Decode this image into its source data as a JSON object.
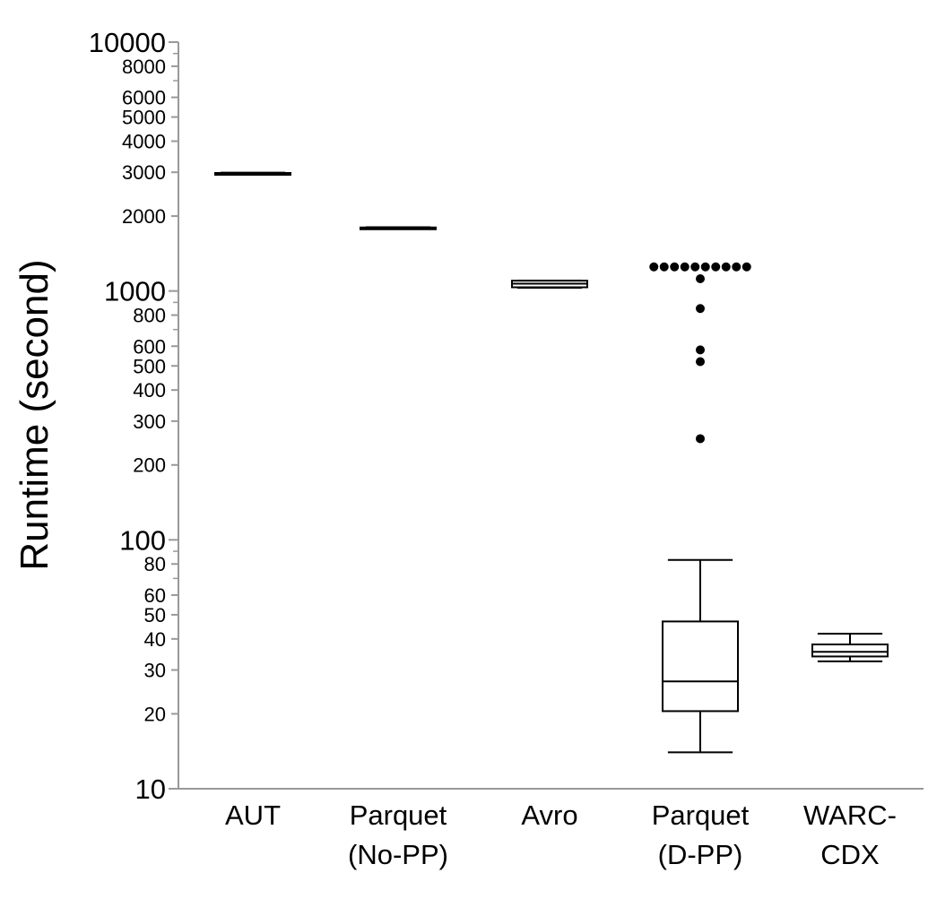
{
  "chart_data": {
    "type": "box",
    "ylabel": "Runtime (second)",
    "yscale": "log",
    "ylim": [
      10,
      10000
    ],
    "grid": false,
    "major_ticks": [
      "10",
      "100",
      "1000",
      "10000"
    ],
    "minor_ticks": [
      "20",
      "30",
      "40",
      "50",
      "60",
      "80",
      "200",
      "300",
      "400",
      "500",
      "600",
      "800",
      "2000",
      "3000",
      "4000",
      "5000",
      "6000",
      "8000"
    ],
    "categories": [
      {
        "label_lines": [
          "AUT"
        ]
      },
      {
        "label_lines": [
          "Parquet",
          "(No-PP)"
        ]
      },
      {
        "label_lines": [
          "Avro"
        ]
      },
      {
        "label_lines": [
          "Parquet",
          "(D-PP)"
        ]
      },
      {
        "label_lines": [
          "WARC-",
          "CDX"
        ]
      }
    ],
    "boxes": [
      {
        "min": 2950,
        "q1": 2960,
        "median": 2970,
        "q3": 2980,
        "max": 2990,
        "outliers": []
      },
      {
        "min": 1775,
        "q1": 1780,
        "median": 1790,
        "q3": 1800,
        "max": 1805,
        "outliers": []
      },
      {
        "min": 1030,
        "q1": 1035,
        "median": 1070,
        "q3": 1100,
        "max": 1100,
        "outliers": []
      },
      {
        "min": 14,
        "q1": 20.5,
        "median": 27,
        "q3": 47,
        "max": 83,
        "outliers": [
          1250,
          1250,
          1250,
          1250,
          1250,
          1250,
          1250,
          1250,
          1250,
          1250,
          1120,
          850,
          580,
          520,
          255
        ]
      },
      {
        "min": 32.5,
        "q1": 34,
        "median": 35.5,
        "q3": 38,
        "max": 42,
        "outliers": []
      }
    ]
  }
}
